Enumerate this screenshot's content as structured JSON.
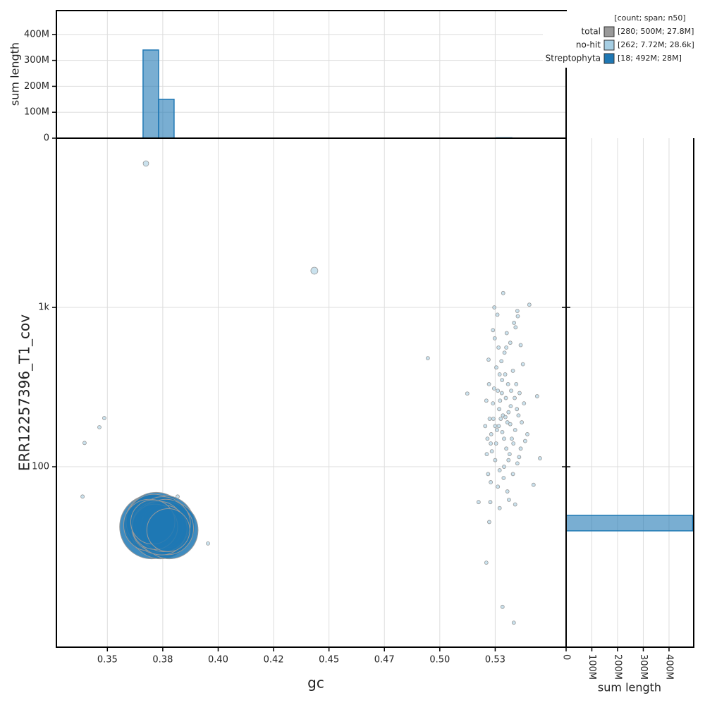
{
  "chart_data": [
    {
      "type": "scatter",
      "xlabel": "gc",
      "ylabel": "ERR12257396_T1_cov",
      "xlim": [
        0.327,
        0.557
      ],
      "ylim": [
        7.37,
        11540
      ],
      "log_y": true,
      "grid": true,
      "xticks": [
        0.35,
        {
          "value": 0.375,
          "label": "0.38"
        },
        {
          "value": 0.4,
          "label": "0.40"
        },
        {
          "value": 0.425,
          "label": "0.42"
        },
        0.45,
        {
          "value": 0.475,
          "label": "0.47"
        },
        {
          "value": 0.5,
          "label": "0.50"
        },
        {
          "value": 0.525,
          "label": "0.53"
        }
      ],
      "yticks": [
        100,
        {
          "value": 1000,
          "label": "1k"
        }
      ],
      "legend": {
        "title": "[count; span; n50]",
        "corner": "top-right",
        "entries": [
          {
            "name": "total",
            "color": "#999999",
            "label": "[280; 500M; 27.8M]"
          },
          {
            "name": "no-hit",
            "color": "#a6cee3",
            "label": "[262; 7.72M; 28.6k]"
          },
          {
            "name": "Streptophyta",
            "color": "#1f78b4",
            "label": "[18; 492M; 28M]"
          }
        ]
      },
      "series": [
        {
          "color": "#a6cee3",
          "x": [
            0.3674,
            0.4434,
            0.4946,
            0.3486,
            0.3464,
            0.3397,
            0.3388,
            0.3817,
            0.3954,
            0.5124,
            0.5175,
            0.521,
            0.5283,
            0.5334,
            0.5223,
            0.5286,
            0.5404,
            0.5452,
            0.5423,
            0.5439,
            0.5255,
            0.527,
            0.5262,
            0.5281,
            0.524,
            0.5298,
            0.531,
            0.5275,
            0.525,
            0.5232,
            0.529,
            0.5305,
            0.532,
            0.5268,
            0.5285,
            0.5245,
            0.5258,
            0.53,
            0.5315,
            0.523,
            0.5225,
            0.5278,
            0.5292,
            0.5265,
            0.5248,
            0.5302,
            0.5335,
            0.535,
            0.526,
            0.524,
            0.522,
            0.533,
            0.5345,
            0.536,
            0.5375,
            0.538,
            0.5355,
            0.534,
            0.5325,
            0.531,
            0.529,
            0.527,
            0.525,
            0.5235,
            0.5215,
            0.5205,
            0.521,
            0.5222,
            0.5212,
            0.5218,
            0.523,
            0.5262,
            0.5288,
            0.5305,
            0.533,
            0.535,
            0.5365,
            0.5385,
            0.5395,
            0.537,
            0.5348,
            0.5338,
            0.5322,
            0.5308,
            0.5295,
            0.528,
            0.5272,
            0.5266,
            0.5254,
            0.5242,
            0.5282,
            0.5296,
            0.5318,
            0.5332,
            0.5358,
            0.53,
            0.5318,
            0.5342,
            0.5365,
            0.5246,
            0.5352,
            0.5228,
            0.527,
            0.5312,
            0.534
          ],
          "values": [
            8000,
            1700,
            480,
            202,
            177,
            141,
            65,
            65,
            33,
            288,
            60,
            25,
            13.2,
            10.5,
            45,
            1230,
            1040,
            113,
            77,
            277,
            420,
            380,
            300,
            350,
            250,
            270,
            220,
            200,
            180,
            160,
            150,
            190,
            240,
            230,
            210,
            310,
            170,
            130,
            120,
            140,
            200,
            460,
            520,
            560,
            640,
            690,
            800,
            950,
            900,
            720,
            470,
            400,
            330,
            290,
            440,
            250,
            210,
            170,
            150,
            110,
            100,
            95,
            110,
            125,
            150,
            180,
            260,
            330,
            120,
            90,
            80,
            75,
            85,
            70,
            90,
            105,
            130,
            145,
            160,
            190,
            230,
            270,
            300,
            330,
            380,
            290,
            260,
            180,
            140,
            200,
            165,
            205,
            185,
            140,
            115,
            560,
            600,
            750,
            580,
            1000,
            880,
            60,
            55,
            62,
            58
          ],
          "sizes": [
            300000,
            480000,
            30000,
            40000,
            30000,
            30000,
            25000,
            60000,
            25000,
            25000,
            25000,
            30000,
            30000,
            25000,
            25000,
            40000,
            35000,
            25000,
            25000,
            30000,
            30000,
            30000,
            30000,
            30000,
            30000,
            30000,
            30000,
            30000,
            30000,
            30000,
            30000,
            30000,
            30000,
            30000,
            30000,
            30000,
            30000,
            30000,
            30000,
            30000,
            30000,
            30000,
            30000,
            30000,
            30000,
            30000,
            30000,
            30000,
            30000,
            30000,
            30000,
            30000,
            30000,
            30000,
            30000,
            30000,
            30000,
            30000,
            30000,
            30000,
            30000,
            30000,
            30000,
            30000,
            30000,
            30000,
            30000,
            30000,
            30000,
            30000,
            30000,
            30000,
            30000,
            30000,
            30000,
            30000,
            30000,
            30000,
            30000,
            30000,
            30000,
            30000,
            30000,
            30000,
            30000,
            30000,
            30000,
            30000,
            30000,
            30000,
            30000,
            30000,
            30000,
            30000,
            30000,
            30000,
            30000,
            30000,
            30000,
            30000,
            30000,
            30000,
            30000,
            30000,
            30000
          ]
        },
        {
          "color": "#1f78b4",
          "x": [
            0.37,
            0.372,
            0.374,
            0.376,
            0.378,
            0.371,
            0.373,
            0.375,
            0.377,
            0.369,
            0.3725,
            0.3745,
            0.3765,
            0.3735,
            0.3755,
            0.3715,
            0.3705,
            0.3775
          ],
          "values": [
            42,
            44,
            41,
            43,
            40,
            45,
            42,
            44,
            41,
            43,
            42,
            40,
            44,
            43,
            41,
            42,
            45,
            40
          ],
          "sizes": [
            40000000,
            38000000,
            36000000,
            34000000,
            32000000,
            30000000,
            29000000,
            28000000,
            27000000,
            26000000,
            25000000,
            24000000,
            23000000,
            22000000,
            21000000,
            20000000,
            19000000,
            18000000
          ]
        }
      ]
    },
    {
      "type": "histogram",
      "ylabel": "sum length",
      "ylim": [
        0,
        492000000
      ],
      "yticks": [
        0,
        {
          "value": 100000000,
          "label": "100M"
        },
        {
          "value": 200000000,
          "label": "200M"
        },
        {
          "value": 300000000,
          "label": "300M"
        },
        {
          "value": 400000000,
          "label": "400M"
        }
      ],
      "series": [
        {
          "color": "#a6cee3",
          "bins": [
            0.5255,
            0.5325
          ],
          "values": [
            3000000
          ]
        },
        {
          "color": "#1f78b4",
          "bins": [
            0.3661,
            0.3731,
            0.3801
          ],
          "values": [
            340000000,
            150000000
          ]
        }
      ]
    },
    {
      "type": "histogram",
      "orientation": "horizontal",
      "xlabel": "sum length",
      "xlim": [
        0,
        496000000
      ],
      "xticks": [
        0,
        {
          "value": 100000000,
          "label": "100M"
        },
        {
          "value": 200000000,
          "label": "200M"
        },
        {
          "value": 300000000,
          "label": "300M"
        },
        {
          "value": 400000000,
          "label": "400M"
        }
      ],
      "series": [
        {
          "color": "#1f78b4",
          "bins": [
            39.6,
            49.5
          ],
          "values": [
            492000000
          ]
        }
      ]
    }
  ]
}
